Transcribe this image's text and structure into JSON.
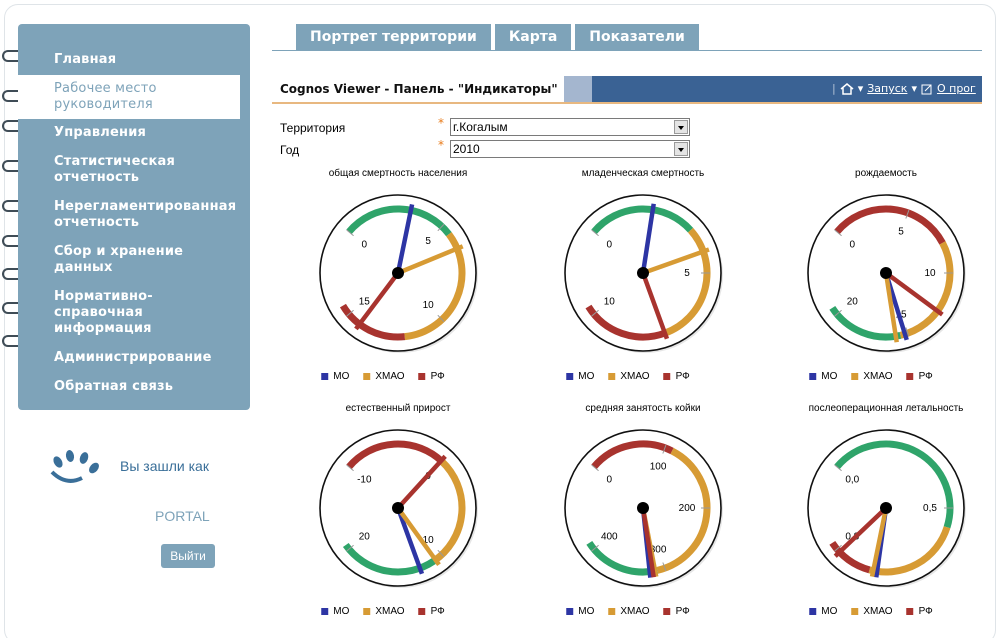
{
  "colors": {
    "mo": "#2d35a4",
    "hmao": "#d79b34",
    "rf": "#a8332e",
    "green": "#2fa46a",
    "sidebar": "#7ea3b9"
  },
  "nav": [
    {
      "label": "Главная",
      "active": false
    },
    {
      "label": "Рабочее место руководителя",
      "active": true
    },
    {
      "label": "Управления",
      "active": false
    },
    {
      "label": "Статистическая отчетность",
      "active": false
    },
    {
      "label": "Нерегламентированная отчетность",
      "active": false
    },
    {
      "label": "Сбор и хранение данных",
      "active": false
    },
    {
      "label": "Нормативно-справочная информация",
      "active": false
    },
    {
      "label": "Администрирование",
      "active": false
    },
    {
      "label": "Обратная связь",
      "active": false
    }
  ],
  "user": {
    "logged_in_as": "Вы зашли как",
    "name": "PORTAL",
    "logout_label": "Выйти"
  },
  "tabs": [
    {
      "label": "Портрет территории"
    },
    {
      "label": "Карта"
    },
    {
      "label": "Показатели"
    }
  ],
  "viewer": {
    "title": "Cognos Viewer - Панель - \"Индикаторы\"",
    "launch_label": "Запуск",
    "about_label": "О прог"
  },
  "filters": {
    "territory_label": "Территория",
    "territory_value": "г.Когалым",
    "year_label": "Год",
    "year_value": "2010"
  },
  "legend": {
    "mo": "МО",
    "hmao": "ХМАО",
    "rf": "РФ"
  },
  "chart_data": [
    {
      "type": "gauge",
      "title": "общая смертность населения",
      "ticks": [
        "0",
        "5",
        "10",
        "15"
      ],
      "min": 0,
      "max": 15,
      "bands": [
        {
          "from": 0,
          "to": 5.5,
          "color": "green"
        },
        {
          "from": 5.5,
          "to": 12,
          "color": "hmao"
        },
        {
          "from": 12,
          "to": 15.5,
          "color": "rf"
        }
      ],
      "series": [
        {
          "name": "МО",
          "value": 3.3
        },
        {
          "name": "ХМАО",
          "value": 6.3
        },
        {
          "name": "РФ",
          "value": 14.3
        }
      ]
    },
    {
      "type": "gauge",
      "title": "младенческая смертность",
      "ticks": [
        "0",
        "5",
        "10"
      ],
      "min": 0,
      "max": 10,
      "bands": [
        {
          "from": 0,
          "to": 3.5,
          "color": "green"
        },
        {
          "from": 3.5,
          "to": 7.5,
          "color": "hmao"
        },
        {
          "from": 7.5,
          "to": 10.3,
          "color": "rf"
        }
      ],
      "series": [
        {
          "name": "МО",
          "value": 2.1
        },
        {
          "name": "ХМАО",
          "value": 4.3
        },
        {
          "name": "РФ",
          "value": 7.5
        }
      ]
    },
    {
      "type": "gauge",
      "title": "рождаемость",
      "ticks": [
        "0",
        "5",
        "10",
        "15",
        "20"
      ],
      "min": 0,
      "max": 20,
      "bands": [
        {
          "from": 0,
          "to": 8,
          "color": "rf"
        },
        {
          "from": 8,
          "to": 15.5,
          "color": "hmao"
        },
        {
          "from": 15.5,
          "to": 20.5,
          "color": "green"
        }
      ],
      "series": [
        {
          "name": "МО",
          "value": 15.2
        },
        {
          "name": "ХМАО",
          "value": 15.8
        },
        {
          "name": "РФ",
          "value": 12.6
        }
      ]
    },
    {
      "type": "gauge",
      "title": "естественный прирост",
      "ticks": [
        "-10",
        "0",
        "10",
        "20"
      ],
      "min": -10,
      "max": 20,
      "bands": [
        {
          "from": -10,
          "to": 0,
          "color": "rf"
        },
        {
          "from": 0,
          "to": 11,
          "color": "hmao"
        },
        {
          "from": 11,
          "to": 20.5,
          "color": "green"
        }
      ],
      "series": [
        {
          "name": "МО",
          "value": 12.5
        },
        {
          "name": "ХМАО",
          "value": 10.8
        },
        {
          "name": "РФ",
          "value": -0.1
        }
      ]
    },
    {
      "type": "gauge",
      "title": "средняя занятость койки",
      "ticks": [
        "0",
        "100",
        "200",
        "300",
        "400"
      ],
      "min": 0,
      "max": 400,
      "bands": [
        {
          "from": 0,
          "to": 110,
          "color": "rf"
        },
        {
          "from": 110,
          "to": 310,
          "color": "hmao"
        },
        {
          "from": 310,
          "to": 410,
          "color": "green"
        }
      ],
      "series": [
        {
          "name": "МО",
          "value": 320
        },
        {
          "name": "ХМАО",
          "value": 313
        },
        {
          "name": "РФ",
          "value": 316
        }
      ]
    },
    {
      "type": "gauge",
      "title": "послеоперационная летальность",
      "ticks": [
        "0,0",
        "0,5",
        "0,8"
      ],
      "min": 0,
      "max": 0.8,
      "bands": [
        {
          "from": 0,
          "to": 0.45,
          "color": "green"
        },
        {
          "from": 0.45,
          "to": 0.7,
          "color": "hmao"
        },
        {
          "from": 0.7,
          "to": 0.82,
          "color": "rf"
        }
      ],
      "series": [
        {
          "name": "МО",
          "value": 0.68
        },
        {
          "name": "ХМАО",
          "value": 0.69
        },
        {
          "name": "РФ",
          "value": 0.79
        }
      ]
    }
  ]
}
